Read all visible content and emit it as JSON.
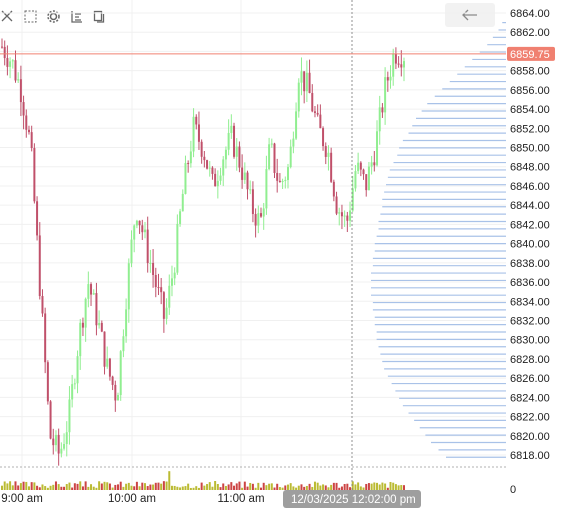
{
  "chart_data": {
    "type": "candlestick",
    "title": "",
    "xlabel": "",
    "ylabel": "",
    "ylim": [
      6816,
      6865
    ],
    "y_ticks": [
      "6864.00",
      "6862.00",
      "6860.00",
      "6858.00",
      "6856.00",
      "6854.00",
      "6852.00",
      "6850.00",
      "6848.00",
      "6846.00",
      "6844.00",
      "6842.00",
      "6840.00",
      "6838.00",
      "6836.00",
      "6834.00",
      "6832.00",
      "6830.00",
      "6828.00",
      "6826.00",
      "6824.00",
      "6822.00",
      "6820.00",
      "6818.00"
    ],
    "x_ticks": [
      "9:00 am",
      "10:00 am",
      "11:00 am"
    ],
    "volume_axis_label": "0",
    "current_price": "6859.75",
    "crosshair_time": "12/03/2025 12:02:00 pm",
    "grid": true,
    "colors": {
      "up": "#90ee90",
      "down": "#c0506a",
      "profile": "#a9c2e8",
      "price_line": "#f08070",
      "price_badge": "#f08070",
      "volume": "#bbbb33",
      "volume_down": "#cc4444"
    },
    "price_path": [
      6860.5,
      6859,
      6856,
      6850,
      6835,
      6820,
      6818,
      6822,
      6830,
      6836,
      6832,
      6827,
      6824,
      6835,
      6844,
      6840,
      6836,
      6832,
      6838,
      6846,
      6852,
      6850,
      6846,
      6849,
      6851,
      6848,
      6844,
      6842,
      6850,
      6846,
      6848,
      6858,
      6856,
      6852,
      6850,
      6844,
      6842,
      6848,
      6846,
      6850,
      6856,
      6860,
      6859.75
    ],
    "volume_profile": [
      2,
      4,
      7,
      10,
      14,
      18,
      22,
      26,
      30,
      34,
      38,
      42,
      45,
      48,
      50,
      52,
      55,
      57,
      58,
      60,
      62,
      63,
      64,
      65,
      66,
      66,
      67,
      68,
      68,
      69,
      70,
      70,
      71,
      71,
      72,
      72,
      72,
      72,
      71,
      71,
      70,
      70,
      69,
      69,
      68,
      67,
      66,
      65,
      63,
      61,
      59,
      57,
      55,
      52,
      49,
      46,
      43,
      40,
      36,
      32
    ]
  }
}
